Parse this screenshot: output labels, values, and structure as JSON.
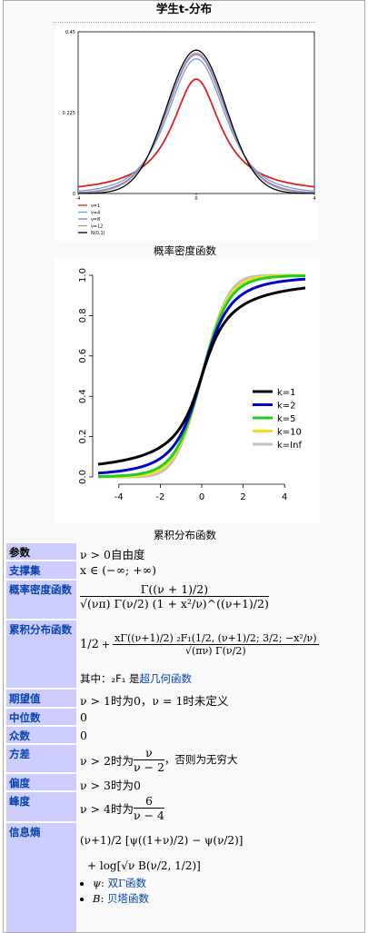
{
  "title": "学生t-分布",
  "pdf_caption": "概率密度函数",
  "cdf_caption": "累积分布函数",
  "pdf_chart": {
    "type": "line",
    "y_ticks": [
      "0.45",
      "0.225",
      "0"
    ],
    "x_ticks": [
      "-4",
      "0",
      "4"
    ],
    "legend": [
      "ν=1",
      "ν=4",
      "ν=8",
      "ν=12",
      "N(0,1)"
    ],
    "colors": [
      "#e02020",
      "#6f9fd8",
      "#a070c8",
      "#9a9a9a",
      "#000000"
    ],
    "dof": [
      1,
      4,
      8,
      12,
      0
    ],
    "xlim": [
      -4,
      4
    ],
    "ylim": [
      0,
      0.45
    ]
  },
  "cdf_chart": {
    "type": "line",
    "y_ticks": [
      "0.0",
      "0.2",
      "0.4",
      "0.6",
      "0.8",
      "1.0"
    ],
    "x_ticks": [
      "-4",
      "-2",
      "0",
      "2",
      "4"
    ],
    "legend": [
      "k=1",
      "k=2",
      "k=5",
      "k=10",
      "k=Inf"
    ],
    "colors": [
      "#000000",
      "#0000cc",
      "#22cc22",
      "#f0e020",
      "#c0c0c0"
    ],
    "dof": [
      1,
      2,
      5,
      10,
      0
    ],
    "xlim": [
      -5,
      5
    ],
    "ylim": [
      0,
      1
    ]
  },
  "rows": {
    "params_label": "参数",
    "params_value": "ν > 0自由度",
    "support_label": "支撑集",
    "support_value": "x ∈ (−∞; +∞)",
    "pdf_label": "概率密度函数",
    "pdf_num": "Γ((ν + 1)/2)",
    "pdf_den": "√(νπ) Γ(ν/2) (1 + x²/ν)^((ν+1)/2)",
    "cdf_label": "累积分布函数",
    "cdf_half": "1/2",
    "cdf_num": "xΓ((ν+1)/2) ₂F₁(1/2, (ν+1)/2; 3/2; −x²/ν)",
    "cdf_den": "√(πν) Γ(ν/2)",
    "cdf_note_prefix": "其中：₂F₁ 是",
    "cdf_note_link": "超几何函数",
    "mean_label": "期望值",
    "mean_value": "ν > 1时为0，ν = 1时未定义",
    "median_label": "中位数",
    "median_value": "0",
    "mode_label": "众数",
    "mode_value": "0",
    "var_label": "方差",
    "var_prefix": "ν > 2时为",
    "var_num": "ν",
    "var_den": "ν − 2",
    "var_suffix": "，否则为无穷大",
    "skew_label": "偏度",
    "skew_value": "ν > 3时为0",
    "kurt_label": "峰度",
    "kurt_prefix": "ν > 4时为",
    "kurt_num": "6",
    "kurt_den": "ν − 4",
    "entropy_label": "信息熵",
    "entropy_line1": "(ν+1)/2 [ψ((1+ν)/2) − ψ(ν/2)]",
    "entropy_line2": "+ log[√ν B(ν/2, 1/2)]",
    "bullet1_sym": "ψ",
    "bullet1_link": "双Γ函数",
    "bullet2_sym": "B",
    "bullet2_link": "贝塔函数"
  }
}
